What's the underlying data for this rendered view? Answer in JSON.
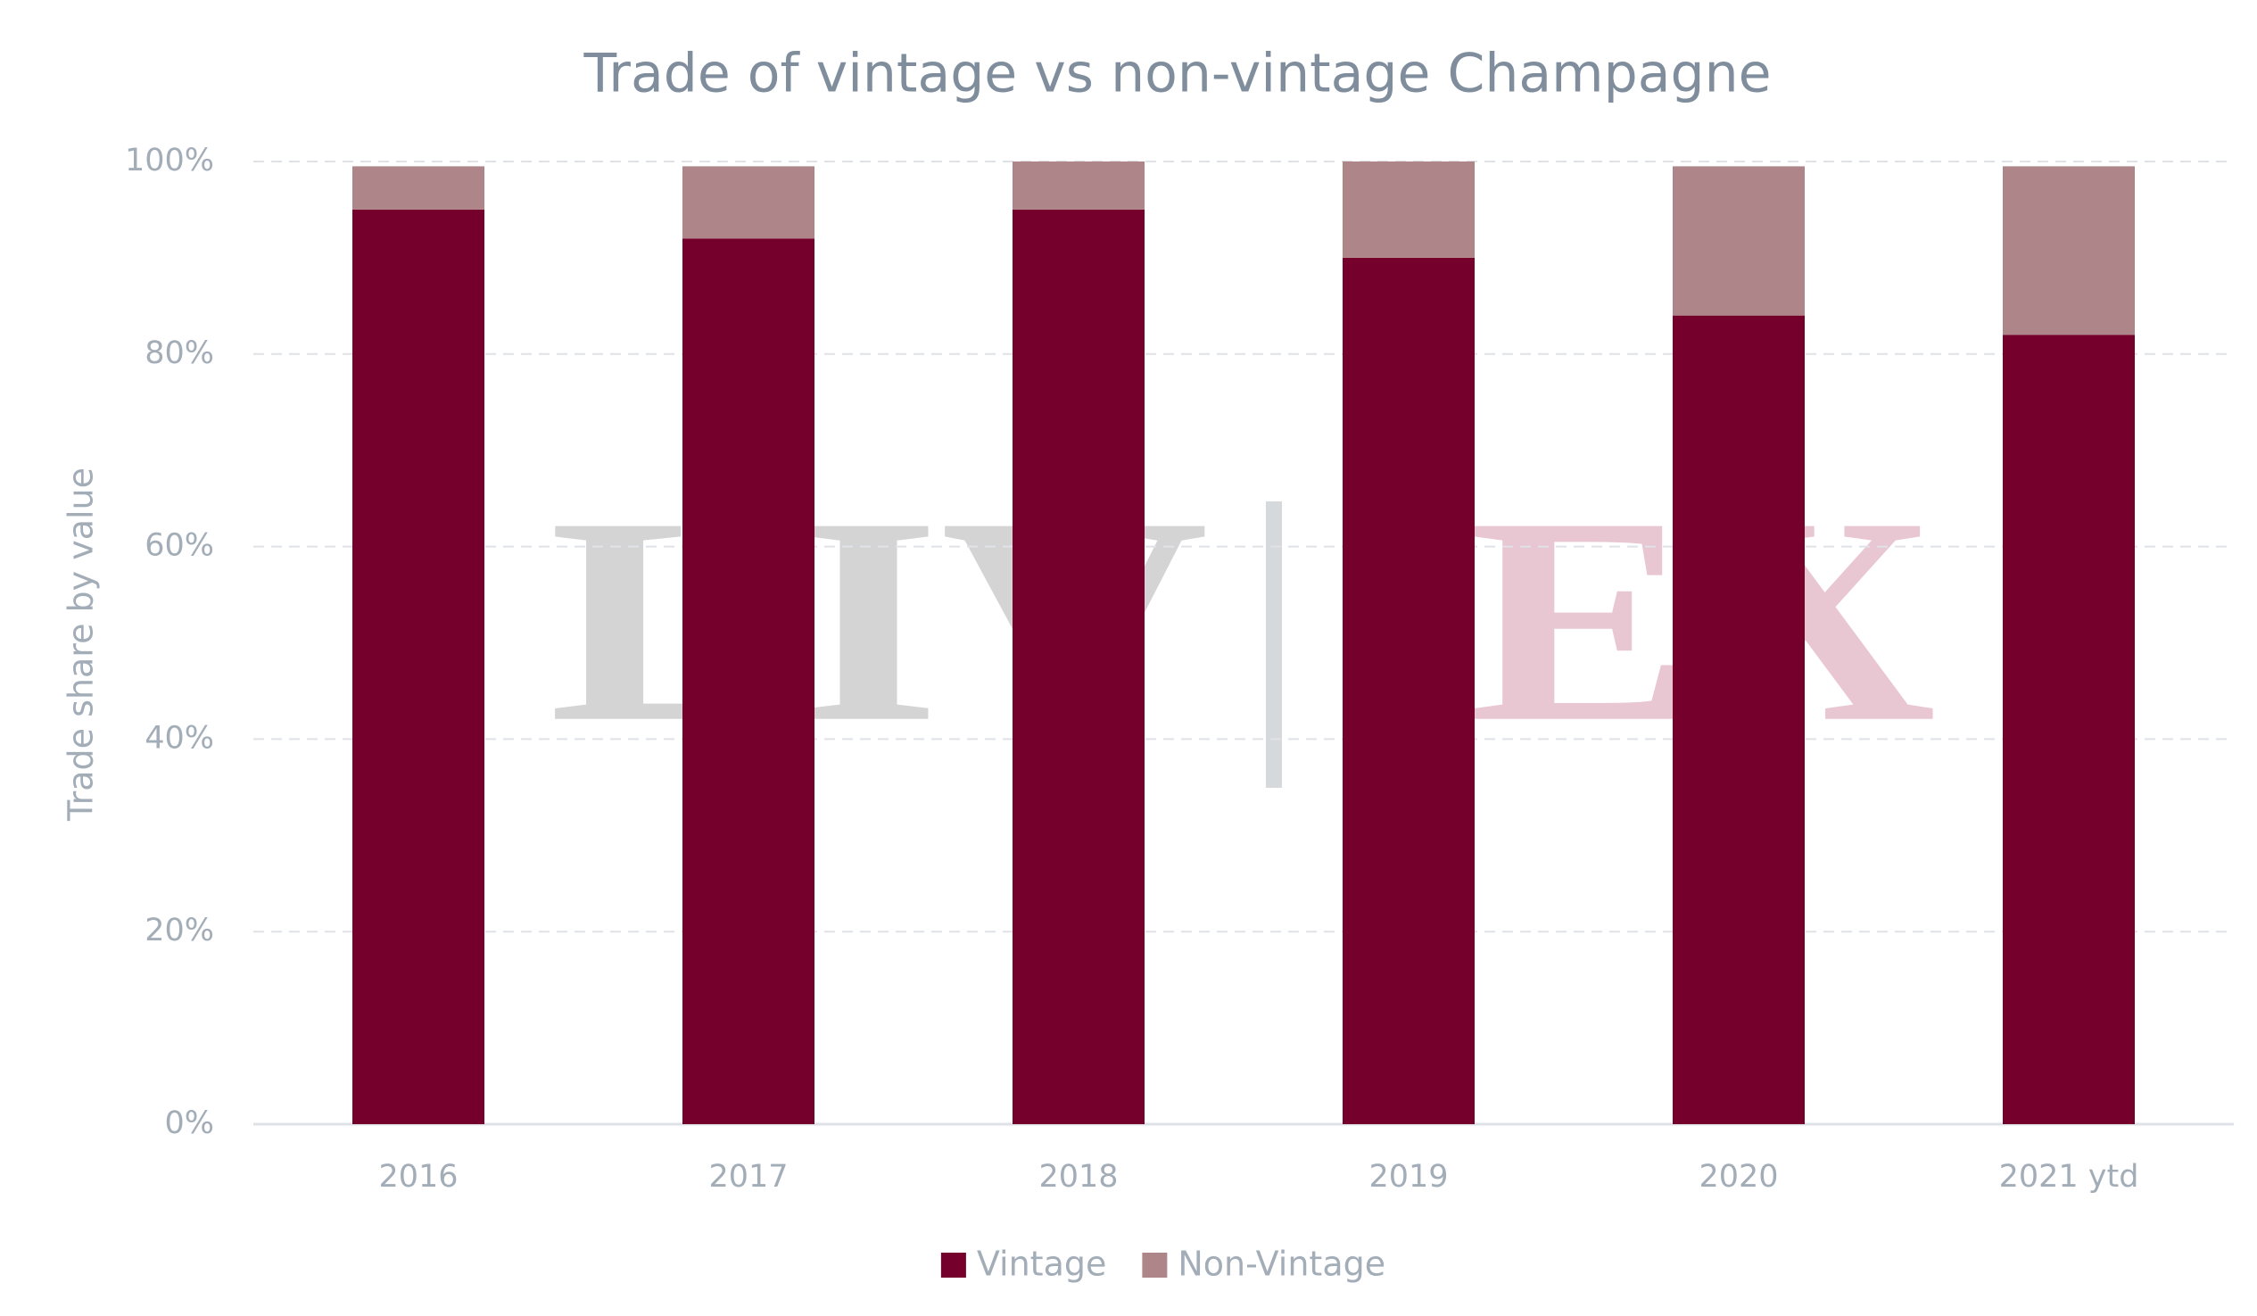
{
  "chart_data": {
    "type": "stacked_bar",
    "title": "Trade of vintage vs non-vintage Champagne",
    "y_axis_label": "Trade share by value",
    "watermark": [
      "LIV",
      "EX"
    ],
    "categories": [
      "2016",
      "2017",
      "2018",
      "2019",
      "2020",
      "2021 ytd"
    ],
    "series": [
      {
        "name": "Vintage",
        "color": "#75002b",
        "values": [
          95,
          92,
          95,
          90,
          84,
          82
        ]
      },
      {
        "name": "Non-Vintage",
        "color": "#ae8588",
        "values": [
          4.5,
          7.5,
          5,
          10,
          15.5,
          17.5
        ]
      }
    ],
    "ylim": [
      0,
      100
    ],
    "yticks": [
      {
        "value": 0,
        "label": "0%"
      },
      {
        "value": 20,
        "label": "20%"
      },
      {
        "value": 40,
        "label": "40%"
      },
      {
        "value": 60,
        "label": "60%"
      },
      {
        "value": 80,
        "label": "80%"
      },
      {
        "value": 100,
        "label": "100%"
      }
    ],
    "grid": true,
    "legend": "bottom"
  }
}
